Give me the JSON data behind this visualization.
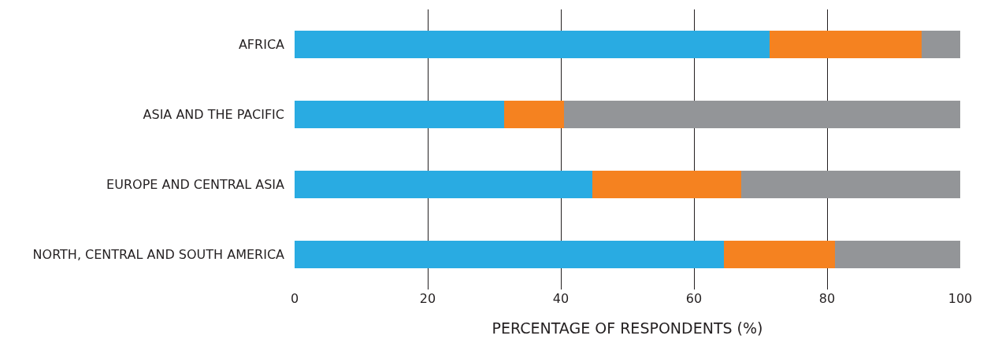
{
  "chart_data": {
    "type": "bar",
    "orientation": "horizontal",
    "stacked": true,
    "xlabel": "PERCENTAGE OF RESPONDENTS (%)",
    "categories": [
      "AFRICA",
      "ASIA AND THE PACIFIC",
      "EUROPE AND CENTRAL ASIA",
      "NORTH, CENTRAL AND SOUTH AMERICA"
    ],
    "series": [
      {
        "color": "#29abe2",
        "values": [
          71.4,
          31.5,
          44.7,
          64.5
        ]
      },
      {
        "color": "#f58220",
        "values": [
          22.8,
          9.0,
          22.4,
          16.7
        ]
      },
      {
        "color": "#939598",
        "values": [
          5.8,
          59.5,
          32.9,
          18.8
        ]
      }
    ],
    "xlim": [
      0,
      100
    ],
    "xticks": [
      0,
      20,
      40,
      60,
      80,
      100
    ],
    "grid": "x"
  }
}
